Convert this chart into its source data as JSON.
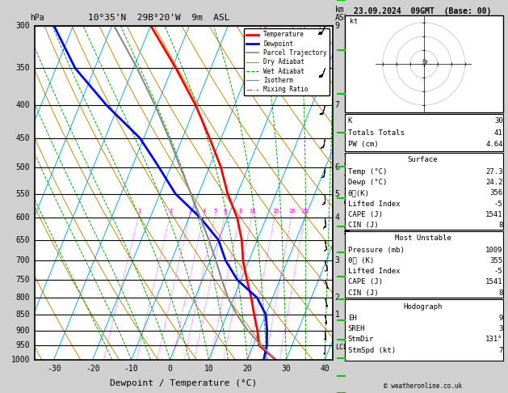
{
  "title_left": "hPa   10°35'N  29B°20'W  9m  ASL",
  "date_str": "23.09.2024  09GMT  (Base: 00)",
  "xlabel": "Dewpoint / Temperature (°C)",
  "x_ticks": [
    -30,
    -20,
    -10,
    0,
    10,
    20,
    30,
    40
  ],
  "x_min": -35,
  "x_max": 42,
  "p_min": 300,
  "p_max": 1000,
  "skew": 35.0,
  "temp_data": [
    [
      1000,
      27.3
    ],
    [
      950,
      21.5
    ],
    [
      900,
      19.5
    ],
    [
      850,
      17.0
    ],
    [
      800,
      14.5
    ],
    [
      750,
      11.5
    ],
    [
      700,
      8.5
    ],
    [
      650,
      6.0
    ],
    [
      600,
      2.5
    ],
    [
      550,
      -2.5
    ],
    [
      500,
      -7.0
    ],
    [
      450,
      -13.0
    ],
    [
      400,
      -20.0
    ],
    [
      350,
      -29.0
    ],
    [
      300,
      -40.0
    ]
  ],
  "dewp_data": [
    [
      1000,
      24.2
    ],
    [
      950,
      23.5
    ],
    [
      900,
      22.0
    ],
    [
      850,
      20.0
    ],
    [
      800,
      16.0
    ],
    [
      750,
      9.0
    ],
    [
      700,
      4.0
    ],
    [
      650,
      0.0
    ],
    [
      600,
      -7.0
    ],
    [
      550,
      -16.0
    ],
    [
      500,
      -23.0
    ],
    [
      450,
      -31.0
    ],
    [
      400,
      -43.0
    ],
    [
      350,
      -55.0
    ],
    [
      300,
      -65.0
    ]
  ],
  "parcel_data": [
    [
      1000,
      27.3
    ],
    [
      950,
      22.0
    ],
    [
      900,
      17.0
    ],
    [
      850,
      12.5
    ],
    [
      800,
      8.5
    ],
    [
      750,
      5.0
    ],
    [
      700,
      1.5
    ],
    [
      650,
      -2.5
    ],
    [
      600,
      -7.0
    ],
    [
      550,
      -12.0
    ],
    [
      500,
      -17.5
    ],
    [
      450,
      -23.5
    ],
    [
      400,
      -30.5
    ],
    [
      350,
      -39.0
    ],
    [
      300,
      -49.5
    ]
  ],
  "mixing_ratios": [
    1,
    2,
    3,
    4,
    5,
    6,
    8,
    10,
    15,
    20,
    25
  ],
  "temp_color": "#FF0000",
  "dewp_color": "#0000FF",
  "parcel_color": "#888888",
  "dry_adiabat_color": "#CC8800",
  "wet_adiabat_color": "#00AA00",
  "isotherm_color": "#00AAFF",
  "mixing_ratio_color": "#FF00FF",
  "stats_K": 30,
  "stats_TT": 41,
  "stats_PW": "4.64",
  "sfc_temp": "27.3",
  "sfc_dewp": "24.2",
  "sfc_thetae": 356,
  "sfc_li": -5,
  "sfc_cape": 1541,
  "sfc_cin": 8,
  "mu_pressure": 1009,
  "mu_thetae": 355,
  "mu_li": -5,
  "mu_cape": 1541,
  "mu_cin": 8,
  "hodo_EH": 9,
  "hodo_SREH": 3,
  "hodo_StmDir": "131°",
  "hodo_StmSpd": 7,
  "legend_items": [
    {
      "label": "Temperature",
      "color": "#FF0000",
      "lw": 2.0,
      "ls": "-"
    },
    {
      "label": "Dewpoint",
      "color": "#0000FF",
      "lw": 2.0,
      "ls": "-"
    },
    {
      "label": "Parcel Trajectory",
      "color": "#888888",
      "lw": 1.2,
      "ls": "-"
    },
    {
      "label": "Dry Adiabat",
      "color": "#CC8800",
      "lw": 0.8,
      "ls": "-"
    },
    {
      "label": "Wet Adiabat",
      "color": "#00AA00",
      "lw": 0.8,
      "ls": "--"
    },
    {
      "label": "Isotherm",
      "color": "#00AAFF",
      "lw": 0.8,
      "ls": "-"
    },
    {
      "label": "Mixing Ratio",
      "color": "#FF00FF",
      "lw": 0.8,
      "ls": "-."
    }
  ],
  "km_labels": [
    [
      300,
      "9"
    ],
    [
      400,
      "7"
    ],
    [
      500,
      "6"
    ],
    [
      550,
      "5"
    ],
    [
      600,
      "4"
    ],
    [
      700,
      "3"
    ],
    [
      800,
      "2"
    ],
    [
      850,
      "1"
    ]
  ],
  "lcl_pressure": 958,
  "wind_levels": [
    1000,
    950,
    900,
    850,
    800,
    750,
    700,
    650,
    600,
    550,
    500,
    450,
    400,
    350,
    300
  ],
  "wind_dirs": [
    180,
    180,
    175,
    170,
    165,
    160,
    165,
    170,
    175,
    180,
    185,
    190,
    195,
    200,
    205
  ],
  "wind_spds": [
    5,
    5,
    5,
    5,
    5,
    5,
    10,
    10,
    15,
    15,
    15,
    15,
    20,
    25,
    30
  ]
}
